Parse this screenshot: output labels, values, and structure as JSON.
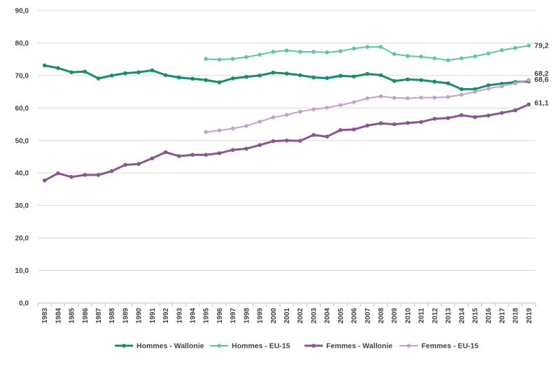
{
  "chart_data": {
    "type": "line",
    "title": "",
    "xlabel": "",
    "ylabel": "",
    "ylim": [
      0,
      90
    ],
    "y_ticks": [
      "0,0",
      "10,0",
      "20,0",
      "30,0",
      "40,0",
      "50,0",
      "60,0",
      "70,0",
      "80,0",
      "90,0"
    ],
    "y_tick_values": [
      0,
      10,
      20,
      30,
      40,
      50,
      60,
      70,
      80,
      90
    ],
    "grid": "horizontal",
    "legend_position": "bottom",
    "x": [
      "1983",
      "1984",
      "1985",
      "1986",
      "1987",
      "1988",
      "1989",
      "1990",
      "1991",
      "1992",
      "1993",
      "1994",
      "1995",
      "1996",
      "1997",
      "1998",
      "1999",
      "2000",
      "2001",
      "2002",
      "2003",
      "2004",
      "2005",
      "2006",
      "2007",
      "2008",
      "2009",
      "2010",
      "2011",
      "2012",
      "2013",
      "2014",
      "2015",
      "2016",
      "2017",
      "2018",
      "2019"
    ],
    "series": [
      {
        "name": "Hommes - Wallonie",
        "color": "#11906b",
        "line_width": 3,
        "values": [
          73.1,
          72.3,
          71.0,
          71.2,
          69.1,
          70.0,
          70.7,
          71.0,
          71.6,
          70.1,
          69.4,
          69.0,
          68.6,
          67.9,
          69.1,
          69.6,
          70.0,
          70.9,
          70.6,
          70.1,
          69.4,
          69.2,
          69.9,
          69.7,
          70.5,
          70.1,
          68.3,
          68.8,
          68.6,
          68.1,
          67.6,
          65.8,
          65.8,
          67.0,
          67.5,
          68.0,
          68.2
        ],
        "end_label": "68,2"
      },
      {
        "name": "Hommes - EU-15",
        "color": "#5ec8a0",
        "line_width": 2,
        "values": [
          null,
          null,
          null,
          null,
          null,
          null,
          null,
          null,
          null,
          null,
          null,
          null,
          75.1,
          74.9,
          75.1,
          75.7,
          76.4,
          77.3,
          77.7,
          77.3,
          77.3,
          77.1,
          77.5,
          78.3,
          78.8,
          78.8,
          76.6,
          76.0,
          75.8,
          75.3,
          74.7,
          75.3,
          75.9,
          76.8,
          77.8,
          78.5,
          79.2
        ],
        "end_label": "79,2"
      },
      {
        "name": "Femmes - Wallonie",
        "color": "#8a5592",
        "line_width": 3,
        "values": [
          37.7,
          39.9,
          38.8,
          39.4,
          39.4,
          40.6,
          42.5,
          42.8,
          44.5,
          46.4,
          45.2,
          45.6,
          45.6,
          46.1,
          47.1,
          47.5,
          48.6,
          49.8,
          50.0,
          49.9,
          51.7,
          51.2,
          53.2,
          53.4,
          54.6,
          55.3,
          55.0,
          55.4,
          55.7,
          56.7,
          56.9,
          57.8,
          57.2,
          57.7,
          58.5,
          59.3,
          61.1
        ],
        "end_label": "61,1"
      },
      {
        "name": "Femmes - EU-15",
        "color": "#c5a0cc",
        "line_width": 2,
        "values": [
          null,
          null,
          null,
          null,
          null,
          null,
          null,
          null,
          null,
          null,
          null,
          null,
          52.6,
          53.1,
          53.7,
          54.5,
          55.8,
          57.1,
          57.9,
          58.9,
          59.6,
          60.1,
          60.9,
          61.8,
          63.0,
          63.6,
          63.1,
          63.0,
          63.2,
          63.2,
          63.4,
          64.1,
          65.0,
          66.0,
          66.7,
          67.6,
          68.6
        ],
        "end_label": "68,6"
      }
    ]
  }
}
